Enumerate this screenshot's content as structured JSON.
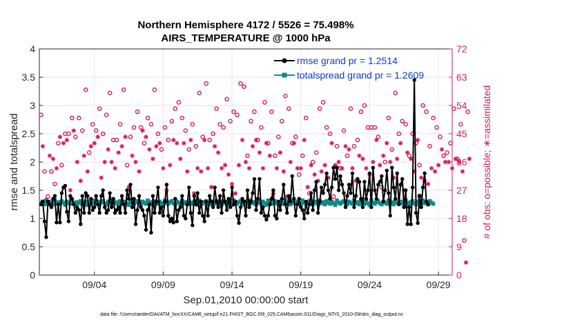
{
  "chart_data": {
    "type": "line",
    "title": "Northern Hemisphere 4172 / 5526 = 75.498%",
    "subtitle": "AIRS_TEMPERATURE @ 1000 hPa",
    "xlabel": "Sep.01,2010 00:00:00 start",
    "ylabel": "rmse and totalspread",
    "y2label": "# of obs: o=possible; ∗=assimilated",
    "footnote": "data file: /Users/raeder/DAI/ATM_forcXX/CAM6_setup/f.e21.FHIST_BGC.f09_025.CAM6assim.011/Diags_NTrS_2010-09/obs_diag_output.nc",
    "xlim": [
      0,
      30
    ],
    "ylim": [
      0,
      4
    ],
    "y2lim": [
      0,
      72
    ],
    "x_ticks": [
      {
        "x": 4,
        "label": "09/04"
      },
      {
        "x": 9,
        "label": "09/09"
      },
      {
        "x": 14,
        "label": "09/14"
      },
      {
        "x": 19,
        "label": "09/19"
      },
      {
        "x": 24,
        "label": "09/24"
      },
      {
        "x": 29,
        "label": "09/29"
      }
    ],
    "y_ticks": [
      "0",
      "0.5",
      "1",
      "1.5",
      "2",
      "2.5",
      "3",
      "3.5",
      "4"
    ],
    "y2_ticks": [
      "0",
      "9",
      "18",
      "27",
      "36",
      "45",
      "54",
      "63",
      "72"
    ],
    "legend": [
      {
        "name": "rmse grand pr = 1.2514",
        "color": "#000000"
      },
      {
        "name": "totalspread grand pr = 1.2609",
        "color": "#0e8a8a"
      }
    ],
    "colors": {
      "rmse": "#000000",
      "spread": "#0e8a8a",
      "obs": "#d6195a",
      "grid": "#e6e6e6"
    },
    "series": [
      {
        "name": "rmse",
        "x_start": 0.125,
        "x_step": 0.125,
        "values": [
          1.25,
          1.3,
          0.95,
          0.67,
          1.3,
          1.25,
          1.2,
          1.35,
          1.4,
          0.93,
          1.25,
          0.93,
          1.45,
          1.55,
          1.58,
          1.12,
          0.95,
          1.4,
          1.35,
          1.25,
          1.1,
          1.2,
          1.15,
          0.9,
          1.4,
          1.1,
          1.45,
          1.4,
          1.1,
          1.35,
          1.15,
          1.2,
          1.4,
          1.25,
          1.1,
          1.4,
          1.5,
          1.2,
          1.1,
          1.15,
          1.45,
          1.2,
          1.35,
          1.1,
          1.15,
          1.2,
          1.1,
          1.4,
          1.25,
          1.1,
          1.5,
          1.35,
          1.6,
          1.2,
          1.35,
          0.9,
          1.15,
          1.4,
          1.2,
          1.15,
          1.05,
          0.8,
          1.15,
          1.25,
          0.75,
          1.4,
          1.1,
          1.3,
          1.55,
          1.1,
          1.2,
          1.05,
          1.3,
          1.6,
          1.05,
          0.95,
          1.0,
          0.93,
          1.35,
          0.95,
          1.15,
          1.2,
          1.4,
          1.05,
          1.0,
          1.25,
          1.55,
          1.1,
          0.88,
          1.4,
          1.25,
          1.45,
          1.1,
          1.3,
          1.05,
          0.95,
          1.3,
          1.05,
          1.4,
          1.3,
          1.2,
          1.55,
          1.3,
          1.2,
          1.4,
          1.1,
          1.5,
          1.3,
          1.15,
          1.35,
          1.2,
          1.55,
          1.25,
          1.3,
          1.05,
          0.92,
          1.2,
          1.35,
          1.3,
          1.05,
          1.5,
          1.2,
          1.3,
          1.45,
          1.7,
          1.15,
          1.35,
          1.7,
          1.1,
          1.2,
          1.05,
          0.98,
          1.05,
          1.25,
          1.35,
          1.5,
          1.05,
          1.0,
          1.3,
          1.15,
          1.35,
          1.6,
          1.25,
          1.1,
          1.4,
          1.3,
          1.75,
          1.35,
          1.05,
          1.25,
          1.35,
          1.2,
          1.15,
          1.0,
          1.3,
          1.1,
          1.25,
          1.45,
          1.15,
          1.5,
          1.65,
          1.1,
          1.3,
          1.55,
          1.45,
          1.6,
          1.8,
          1.5,
          1.35,
          1.55,
          1.9,
          1.7,
          1.9,
          1.5,
          1.75,
          1.6,
          1.45,
          1.2,
          1.4,
          1.6,
          1.45,
          1.8,
          1.2,
          1.4,
          1.7,
          1.65,
          1.35,
          1.2,
          1.65,
          1.35,
          1.5,
          1.8,
          1.2,
          1.9,
          1.5,
          1.35,
          1.6,
          1.65,
          1.75,
          1.3,
          1.5,
          1.85,
          1.45,
          1.05,
          1.9,
          1.55,
          1.35,
          1.8,
          1.25,
          1.6,
          1.7,
          1.2,
          1.5,
          0.9,
          1.2,
          0.9,
          1.55,
          3.45,
          1.1,
          0.92,
          1.4,
          1.2,
          1.55,
          1.8,
          1.3,
          1.25
        ]
      },
      {
        "name": "totalspread",
        "x_start": 0.125,
        "x_step": 0.125,
        "values": [
          1.28,
          1.3,
          1.25,
          1.32,
          1.26,
          1.28,
          1.3,
          1.25,
          1.33,
          1.27,
          1.29,
          1.26,
          1.31,
          1.28,
          1.24,
          1.3,
          1.27,
          1.26,
          1.32,
          1.28,
          1.25,
          1.29,
          1.27,
          1.31,
          1.26,
          1.28,
          1.3,
          1.24,
          1.29,
          1.27,
          1.32,
          1.28,
          1.26,
          1.3,
          1.25,
          1.29,
          1.31,
          1.27,
          1.25,
          1.3,
          1.28,
          1.26,
          1.32,
          1.27,
          1.29,
          1.25,
          1.31,
          1.28,
          1.26,
          1.3,
          1.27,
          1.24,
          1.32,
          1.28,
          1.26,
          1.29,
          1.31,
          1.27,
          1.25,
          1.3,
          1.28,
          1.26,
          1.32,
          1.27,
          1.29,
          1.25,
          1.31,
          1.28,
          1.26,
          1.3,
          1.27,
          1.24,
          1.32,
          1.28,
          1.26,
          1.29,
          1.31,
          1.27,
          1.25,
          1.3,
          1.28,
          1.26,
          1.32,
          1.27,
          1.29,
          1.25,
          1.31,
          1.28,
          1.26,
          1.3,
          1.27,
          1.24,
          1.32,
          1.28,
          1.26,
          1.29,
          1.31,
          1.27,
          1.25,
          1.3,
          1.28,
          1.26,
          1.32,
          1.27,
          1.29,
          1.25,
          1.31,
          1.28,
          1.26,
          1.3,
          1.27,
          1.24,
          1.32,
          1.28,
          1.26,
          1.29,
          1.31,
          1.27,
          1.25,
          1.3,
          1.28,
          1.26,
          1.32,
          1.27,
          1.29,
          1.25,
          1.31,
          1.28,
          1.26,
          1.3,
          1.27,
          1.24,
          1.32,
          1.28,
          1.26,
          1.29,
          1.31,
          1.27,
          1.25,
          1.3,
          1.28,
          1.26,
          1.32,
          1.27,
          1.29,
          1.25,
          1.31,
          1.28,
          1.26,
          1.3,
          1.27,
          1.24,
          1.32,
          1.28,
          1.26,
          1.29,
          1.31,
          1.27,
          1.25,
          1.3,
          1.28,
          1.26,
          1.32,
          1.27,
          1.29,
          1.25,
          1.31,
          1.28,
          1.26,
          1.3,
          1.27,
          1.24,
          1.32,
          1.28,
          1.26,
          1.29,
          1.31,
          1.27,
          1.25,
          1.3,
          1.28,
          1.26,
          1.32,
          1.27,
          1.29,
          1.25,
          1.31,
          1.28,
          1.26,
          1.3,
          1.27,
          1.24,
          1.32,
          1.28,
          1.26,
          1.29,
          1.31,
          1.27,
          1.25,
          1.3,
          1.28,
          1.26,
          1.32,
          1.27,
          1.29,
          1.25,
          1.31,
          1.28,
          1.26,
          1.3,
          1.27,
          1.24,
          1.32,
          1.28,
          1.26,
          1.29,
          1.31,
          1.27,
          1.25,
          1.3,
          1.4,
          1.26,
          1.32,
          1.27,
          1.29,
          1.25,
          1.31,
          1.28,
          1.26
        ]
      },
      {
        "name": "obs_possible",
        "axis": "right",
        "x_start": 0.125,
        "x_step": 0.25,
        "values": [
          51,
          33,
          25,
          33,
          29,
          42,
          35,
          45,
          45,
          50,
          44,
          50,
          46,
          59,
          39,
          48,
          46,
          53,
          45,
          51,
          58,
          43,
          43,
          48,
          59,
          35,
          44,
          47,
          52,
          47,
          42,
          50,
          48,
          59,
          45,
          40,
          47,
          43,
          49,
          53,
          55,
          50,
          46,
          40,
          48,
          41,
          58,
          44,
          61,
          43,
          45,
          53,
          48,
          47,
          56,
          49,
          52,
          51,
          61,
          60,
          38,
          49,
          52,
          43,
          47,
          55,
          42,
          52,
          38,
          44,
          49,
          57,
          53,
          42,
          44,
          32,
          38,
          50,
          26,
          36,
          39,
          53,
          55,
          47,
          45,
          25,
          41,
          34,
          46,
          38,
          53,
          41,
          43,
          52,
          54,
          47,
          47,
          47,
          44,
          28,
          36,
          50,
          40,
          58,
          45,
          49,
          48,
          38,
          45,
          42,
          35,
          54,
          52,
          41,
          50,
          47,
          44,
          38,
          39,
          42,
          53,
          37,
          48,
          11,
          52
        ]
      },
      {
        "name": "obs_assimilated",
        "axis": "right",
        "x_start": 0.25,
        "x_step": 0.25,
        "values": [
          41,
          24,
          38,
          37,
          34,
          44,
          42,
          43,
          27,
          46,
          36,
          30,
          38,
          33,
          41,
          42,
          44,
          31,
          36,
          40,
          36,
          34,
          39,
          41,
          44,
          28,
          38,
          36,
          33,
          46,
          44,
          40,
          37,
          41,
          42,
          34,
          27,
          35,
          43,
          42,
          37,
          42,
          33,
          43,
          26,
          34,
          33,
          43,
          34,
          28,
          41,
          39,
          34,
          35,
          32,
          29,
          26,
          35,
          43,
          36,
          34,
          41,
          43,
          39,
          34,
          42,
          38,
          26,
          34,
          39,
          33,
          25,
          36,
          42,
          34,
          34,
          43,
          28,
          35,
          32,
          30,
          33,
          35,
          31,
          42,
          35,
          36,
          34,
          41,
          40,
          34,
          30,
          38,
          37,
          34,
          32,
          36,
          43,
          35,
          38,
          42,
          36,
          31,
          37,
          42,
          27,
          39,
          37,
          33,
          43,
          31,
          30,
          29,
          34,
          33,
          35,
          40,
          36,
          36,
          34,
          37,
          36,
          33,
          4,
          37
        ]
      }
    ]
  }
}
